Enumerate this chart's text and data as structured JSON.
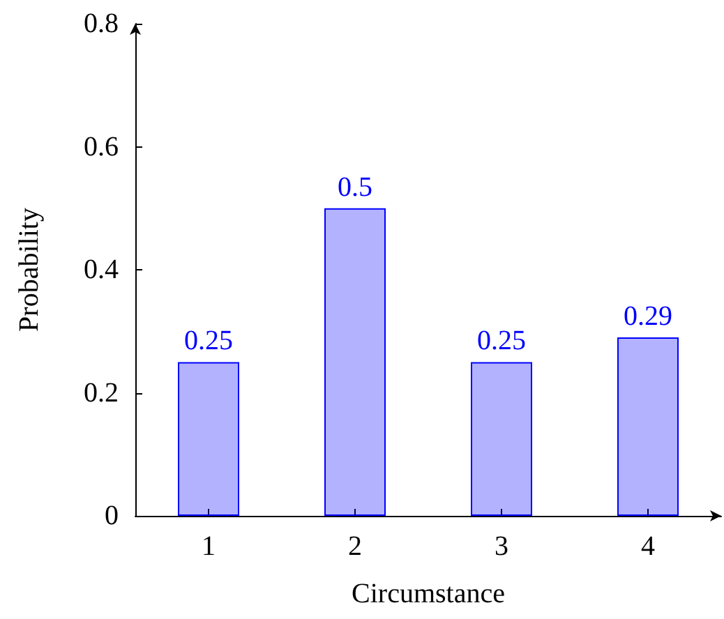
{
  "chart_data": {
    "type": "bar",
    "xlabel": "Circumstance",
    "ylabel": "Probability",
    "categories": [
      "1",
      "2",
      "3",
      "4"
    ],
    "series": [
      {
        "color": "#0000ff",
        "values": [
          0.25,
          0.5,
          0.25,
          0.29
        ]
      }
    ],
    "ylim": [
      0,
      0.8
    ],
    "yticks": [
      0,
      0.2,
      0.4,
      0.6,
      0.8
    ],
    "data_labels": true,
    "grid": false,
    "legend": false
  }
}
